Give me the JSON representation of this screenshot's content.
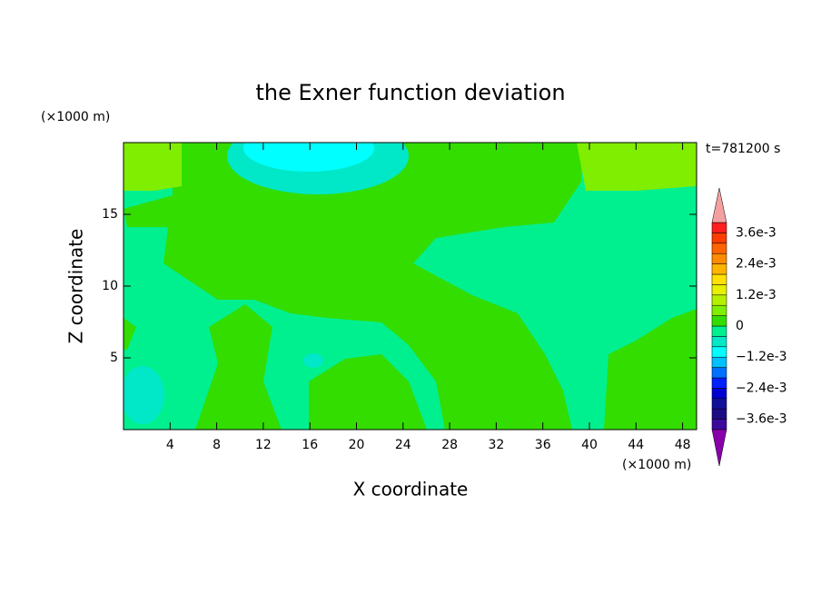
{
  "chart_data": {
    "type": "contour",
    "title": "the Exner function deviation",
    "x_label": "X coordinate",
    "y_label": "Z coordinate",
    "x_unit": "(×1000 m)",
    "y_unit": "(×1000 m)",
    "annotation": "t=781200 s",
    "xlim": [
      0,
      49.2
    ],
    "ylim": [
      0,
      20
    ],
    "xticks": [
      4,
      8,
      12,
      16,
      20,
      24,
      28,
      32,
      36,
      40,
      44,
      48
    ],
    "yticks": [
      5,
      10,
      15
    ],
    "colorbar": {
      "levels": [
        -0.004,
        -0.0036,
        -0.0032,
        -0.0028,
        -0.0024,
        -0.002,
        -0.0016,
        -0.0012,
        -0.0008,
        -0.0004,
        0,
        0.0004,
        0.0008,
        0.0012,
        0.0016,
        0.002,
        0.0024,
        0.0028,
        0.0032,
        0.0036,
        0.004
      ],
      "colors": [
        "#3c0a9a",
        "#1c0c84",
        "#101098",
        "#0000d0",
        "#0020ff",
        "#0070ff",
        "#00c0ff",
        "#00ffff",
        "#00e8c8",
        "#00f090",
        "#33dd00",
        "#80ee00",
        "#b4f000",
        "#e6f000",
        "#ffe000",
        "#ffb400",
        "#ff8c00",
        "#ff6400",
        "#ff3c00",
        "#ff1e1e"
      ],
      "over_color": "#f4a0a0",
      "under_color": "#8800aa",
      "ticks": [
        {
          "value": 0.0036,
          "label": "3.6e-3"
        },
        {
          "value": 0.0024,
          "label": "2.4e-3"
        },
        {
          "value": 0.0012,
          "label": "1.2e-3"
        },
        0,
        {
          "value": -0.0012,
          "label": "−1.2e-3"
        },
        {
          "value": -0.0024,
          "label": "−2.4e-3"
        },
        {
          "value": -0.0036,
          "label": "−3.6e-3"
        }
      ]
    }
  }
}
